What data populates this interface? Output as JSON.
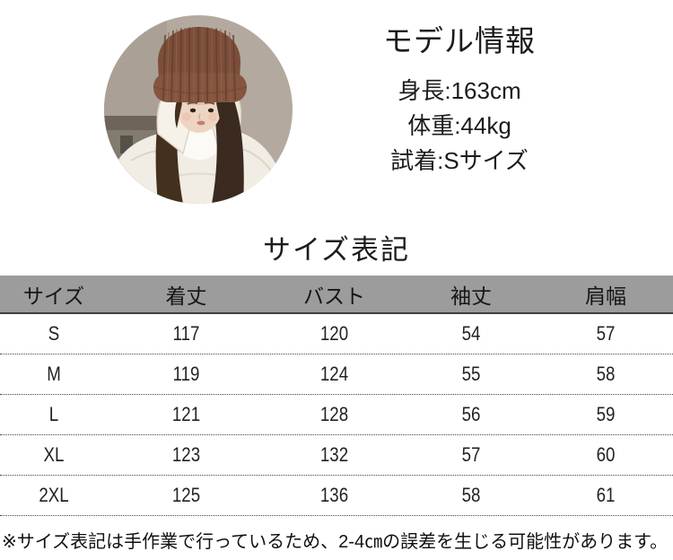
{
  "model_photo": {
    "description": "young woman wearing a chunky brown knit beanie and white puffer jacket, circular crop",
    "colors": {
      "wall": "#b3a99f",
      "beanie": "#7c4e3a",
      "hair": "#3c2b20",
      "jacket": "#f1ede4",
      "skin": "#eed4c2"
    }
  },
  "model_info": {
    "heading": "モデル情報",
    "lines": [
      "身長:163cm",
      "体重:44kg",
      "試着:Sサイズ"
    ]
  },
  "size_section": {
    "title": "サイズ表記",
    "note": "※サイズ表記は手作業で行っているため、2-4㎝の誤差を生じる可能性があります。"
  },
  "size_table": {
    "columns": [
      "サイズ",
      "着丈",
      "バスト",
      "袖丈",
      "肩幅"
    ],
    "rows": [
      [
        "S",
        "117",
        "120",
        "54",
        "57"
      ],
      [
        "M",
        "119",
        "124",
        "55",
        "58"
      ],
      [
        "L",
        "121",
        "128",
        "56",
        "59"
      ],
      [
        "XL",
        "123",
        "132",
        "57",
        "60"
      ],
      [
        "2XL",
        "125",
        "136",
        "58",
        "61"
      ]
    ],
    "header_bg": "#9c9c9c",
    "header_border": "#3f3f3f",
    "row_divider": "#444444"
  }
}
